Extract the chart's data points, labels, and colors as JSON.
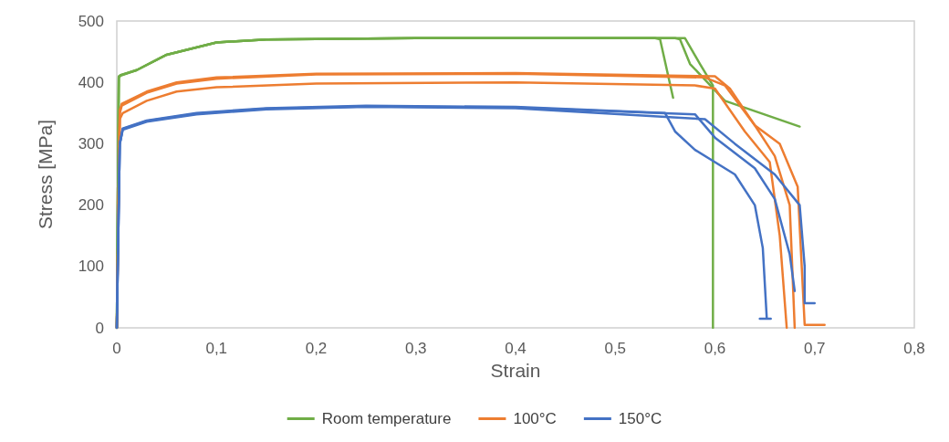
{
  "chart_data": {
    "type": "line",
    "xlabel": "Strain",
    "ylabel": "Stress [MPa]",
    "xlim": [
      0,
      0.8
    ],
    "ylim": [
      0,
      500
    ],
    "xticks": [
      {
        "value": 0,
        "label": "0"
      },
      {
        "value": 0.1,
        "label": "0,1"
      },
      {
        "value": 0.2,
        "label": "0,2"
      },
      {
        "value": 0.3,
        "label": "0,3"
      },
      {
        "value": 0.4,
        "label": "0,4"
      },
      {
        "value": 0.5,
        "label": "0,5"
      },
      {
        "value": 0.6,
        "label": "0,6"
      },
      {
        "value": 0.7,
        "label": "0,7"
      },
      {
        "value": 0.8,
        "label": "0,8"
      }
    ],
    "yticks": [
      0,
      100,
      200,
      300,
      400,
      500
    ],
    "grid": false,
    "legend": "bottom",
    "marker": "none",
    "line_style": "solid",
    "series": [
      {
        "name": "Room temperature",
        "color": "#70ad47",
        "x": [
          0,
          0.002,
          0.004,
          0.02,
          0.05,
          0.1,
          0.15,
          0.3,
          0.45,
          0.54,
          0.545,
          0.558
        ],
        "values": [
          0,
          410,
          412,
          420,
          445,
          465,
          470,
          472,
          472,
          472,
          470,
          375
        ]
      },
      {
        "name": null,
        "color": "#70ad47",
        "x": [
          0,
          0.002,
          0.004,
          0.02,
          0.05,
          0.1,
          0.15,
          0.3,
          0.45,
          0.57,
          0.585,
          0.598,
          0.598
        ],
        "values": [
          0,
          408,
          411,
          420,
          445,
          465,
          470,
          472,
          472,
          472,
          430,
          395,
          0
        ]
      },
      {
        "name": null,
        "color": "#70ad47",
        "x": [
          0,
          0.002,
          0.004,
          0.02,
          0.05,
          0.1,
          0.15,
          0.3,
          0.45,
          0.56,
          0.565,
          0.575,
          0.61,
          0.685
        ],
        "values": [
          0,
          409,
          412,
          420,
          445,
          465,
          470,
          472,
          472,
          472,
          470,
          430,
          370,
          328
        ]
      },
      {
        "name": "100°C",
        "color": "#ed7d31",
        "x": [
          0,
          0.003,
          0.005,
          0.03,
          0.06,
          0.1,
          0.2,
          0.4,
          0.6,
          0.615,
          0.64,
          0.66,
          0.675,
          0.68
        ],
        "values": [
          0,
          355,
          365,
          385,
          400,
          408,
          414,
          415,
          410,
          390,
          330,
          280,
          200,
          0
        ]
      },
      {
        "name": null,
        "color": "#ed7d31",
        "x": [
          0,
          0.003,
          0.006,
          0.03,
          0.06,
          0.1,
          0.2,
          0.4,
          0.58,
          0.6,
          0.63,
          0.655,
          0.665,
          0.672
        ],
        "values": [
          0,
          340,
          350,
          370,
          385,
          392,
          398,
          400,
          395,
          390,
          320,
          270,
          150,
          0
        ]
      },
      {
        "name": null,
        "color": "#ed7d31",
        "x": [
          0,
          0.003,
          0.005,
          0.03,
          0.06,
          0.1,
          0.2,
          0.4,
          0.59,
          0.61,
          0.64,
          0.665,
          0.683,
          0.69,
          0.697,
          0.71
        ],
        "values": [
          0,
          350,
          362,
          383,
          398,
          406,
          413,
          414,
          408,
          395,
          330,
          300,
          230,
          5,
          5,
          5
        ]
      },
      {
        "name": "150°C",
        "color": "#4472c4",
        "x": [
          0,
          0.003,
          0.006,
          0.03,
          0.08,
          0.15,
          0.25,
          0.4,
          0.55,
          0.56,
          0.58,
          0.62,
          0.64,
          0.648,
          0.652,
          0.645,
          0.656
        ],
        "values": [
          0,
          300,
          325,
          338,
          350,
          358,
          362,
          360,
          350,
          320,
          290,
          250,
          200,
          130,
          15,
          15,
          15
        ]
      },
      {
        "name": null,
        "color": "#4472c4",
        "x": [
          0,
          0.003,
          0.006,
          0.03,
          0.08,
          0.15,
          0.25,
          0.4,
          0.58,
          0.6,
          0.64,
          0.66,
          0.675,
          0.68
        ],
        "values": [
          0,
          300,
          324,
          337,
          349,
          357,
          361,
          359,
          348,
          310,
          260,
          210,
          120,
          60
        ]
      },
      {
        "name": null,
        "color": "#4472c4",
        "x": [
          0,
          0.003,
          0.006,
          0.03,
          0.08,
          0.15,
          0.25,
          0.4,
          0.59,
          0.62,
          0.66,
          0.685,
          0.69,
          0.69,
          0.7
        ],
        "values": [
          0,
          300,
          323,
          336,
          348,
          356,
          360,
          358,
          340,
          300,
          250,
          200,
          100,
          40,
          40
        ]
      }
    ]
  }
}
